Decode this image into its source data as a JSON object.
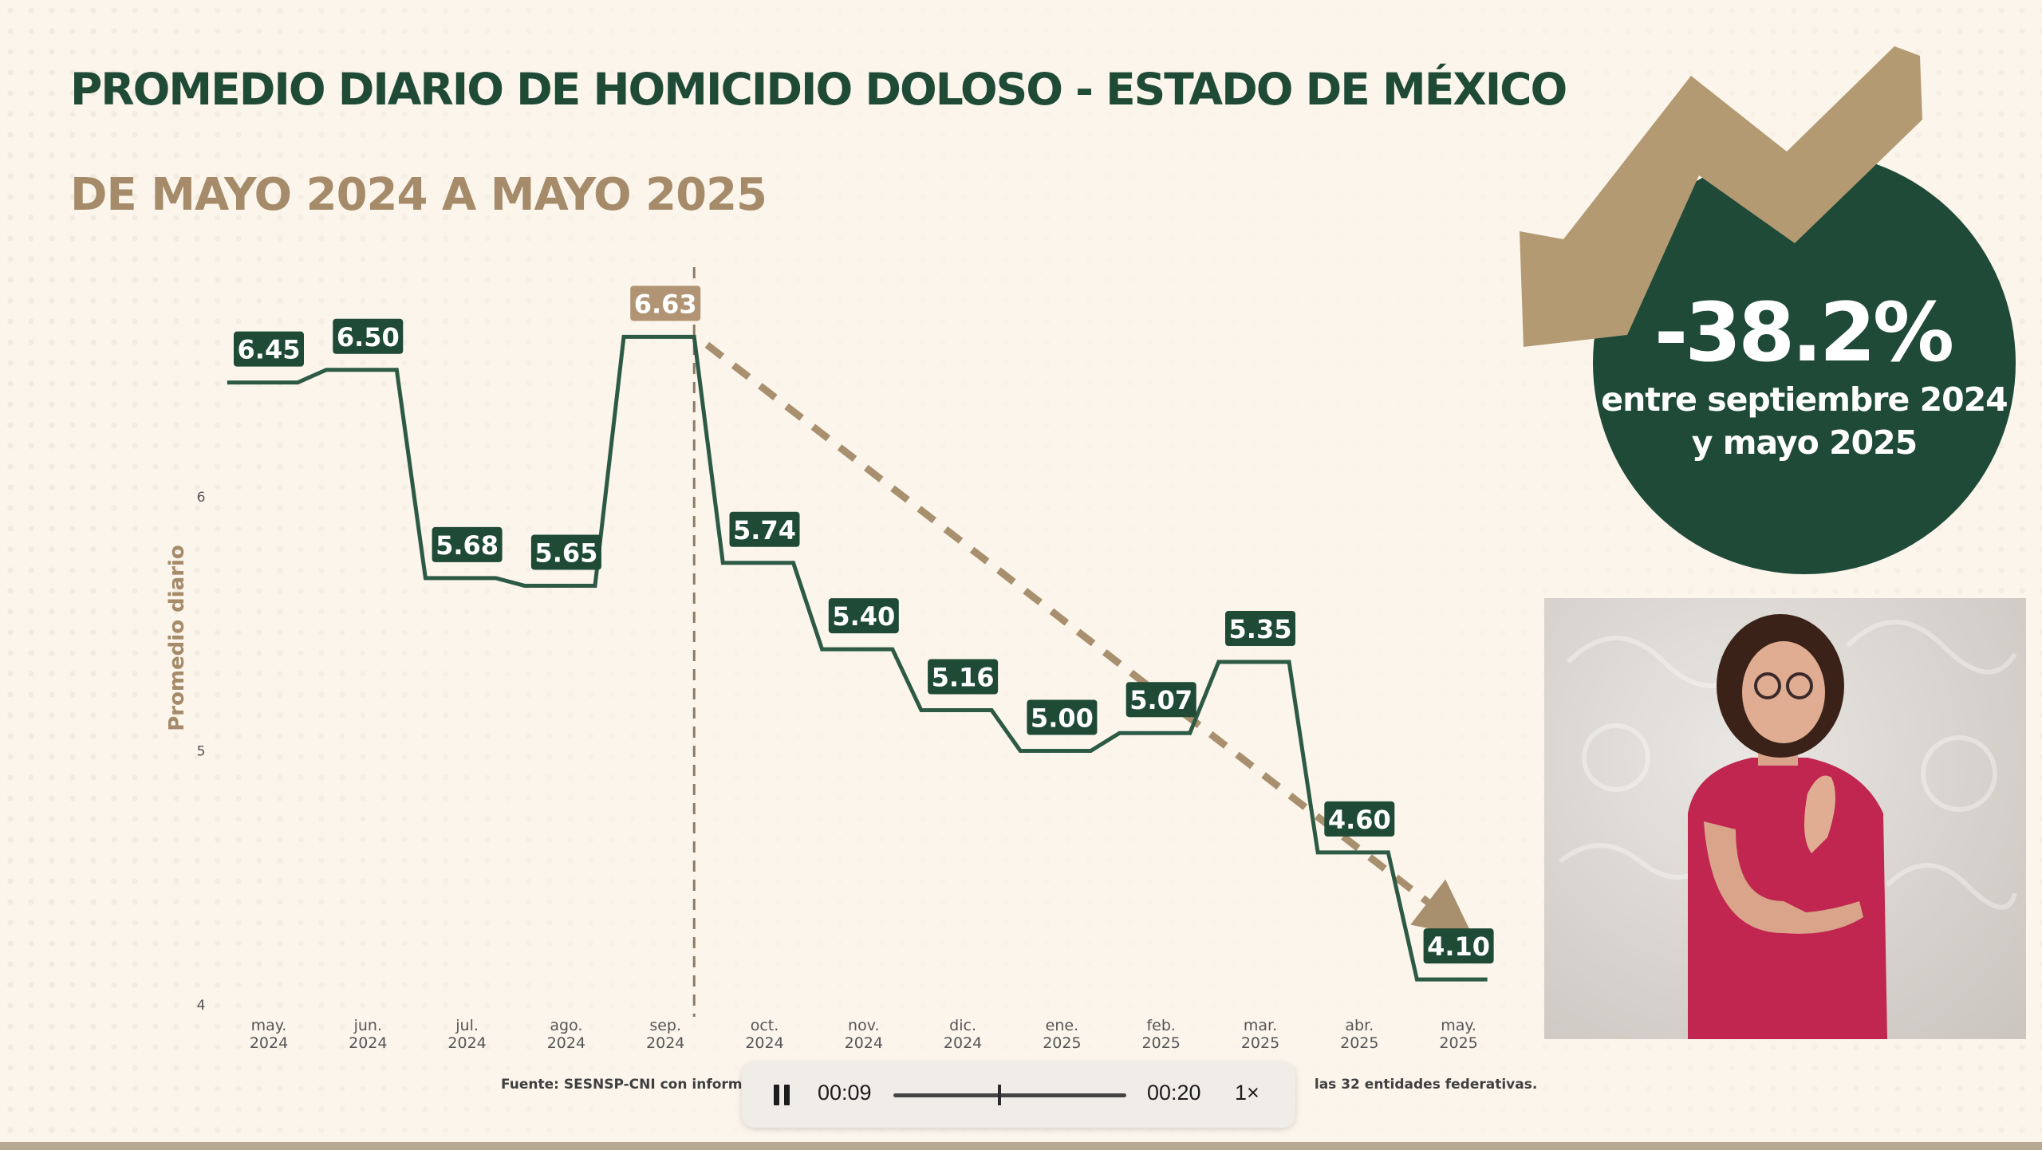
{
  "title": "PROMEDIO DIARIO DE HOMICIDIO DOLOSO - ESTADO DE MÉXICO",
  "subtitle": "DE MAYO 2024 A MAYO 2025",
  "chart_data": {
    "type": "line",
    "ylabel": "Promedio diario",
    "ylim": [
      4,
      7
    ],
    "y_ticks": [
      "4",
      "5",
      "6"
    ],
    "categories": [
      [
        "may.",
        "2024"
      ],
      [
        "jun.",
        "2024"
      ],
      [
        "jul.",
        "2024"
      ],
      [
        "ago.",
        "2024"
      ],
      [
        "sep.",
        "2024"
      ],
      [
        "oct.",
        "2024"
      ],
      [
        "nov.",
        "2024"
      ],
      [
        "dic.",
        "2024"
      ],
      [
        "ene.",
        "2025"
      ],
      [
        "feb.",
        "2025"
      ],
      [
        "mar.",
        "2025"
      ],
      [
        "abr.",
        "2025"
      ],
      [
        "may.",
        "2025"
      ]
    ],
    "values": [
      6.45,
      6.5,
      5.68,
      5.65,
      6.63,
      5.74,
      5.4,
      5.16,
      5.0,
      5.07,
      5.35,
      4.6,
      4.1
    ],
    "labels": [
      "6.45",
      "6.50",
      "5.68",
      "5.65",
      "6.63",
      "5.74",
      "5.40",
      "5.16",
      "5.00",
      "5.07",
      "5.35",
      "4.60",
      "4.10"
    ],
    "highlight_index": 4,
    "line_style": "step",
    "trend_line": "dashed arrow from sep. 2024 to may. 2025",
    "colors": {
      "line": "#2d5a44",
      "label_bg": "#1e4a36",
      "highlight_bg": "#b09473",
      "trend": "#a88f6e"
    }
  },
  "badge": {
    "percent": "-38.2%",
    "caption_line1": "entre septiembre 2024",
    "caption_line2": "y mayo 2025",
    "circle_color": "#1f4a38",
    "arrow_color": "#b39a72"
  },
  "source_note": "Fuente: SESNSP-CNI con informaci",
  "source_note_end": "las 32 entidades federativas.",
  "player": {
    "state_icon": "pause-icon",
    "current_time": "00:09",
    "duration": "00:20",
    "speed": "1×",
    "progress": 0.45
  }
}
